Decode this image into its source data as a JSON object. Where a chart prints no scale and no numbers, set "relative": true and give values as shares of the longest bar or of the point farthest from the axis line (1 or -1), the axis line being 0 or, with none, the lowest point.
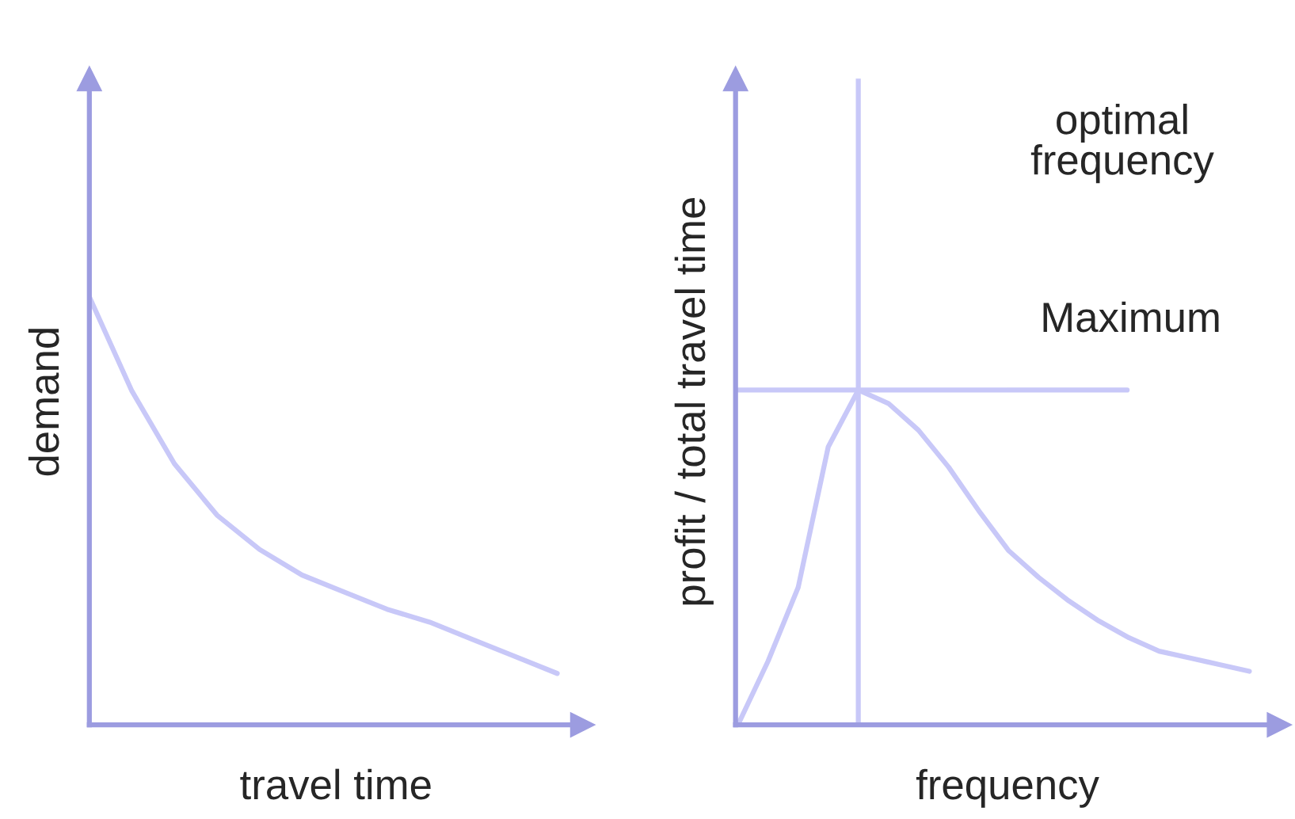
{
  "chart_data": [
    {
      "type": "line",
      "relative": true,
      "xlabel": "travel time",
      "ylabel": "demand",
      "categories": [
        null,
        null,
        null,
        null,
        null,
        null,
        null,
        null,
        null,
        null,
        null,
        null
      ],
      "tick_labels": false,
      "series": [
        {
          "color": "#c8c8f8",
          "values": [
            1,
            0.78,
            0.61,
            0.49,
            0.41,
            0.35,
            0.31,
            0.27,
            0.24,
            0.2,
            0.16,
            0.12
          ]
        }
      ]
    },
    {
      "type": "line",
      "relative": true,
      "xlabel": "frequency",
      "ylabel": "profit / total travel time",
      "categories": [
        null,
        null,
        null,
        null,
        null,
        null,
        null,
        null,
        null,
        null,
        null,
        null,
        null,
        null,
        null,
        null,
        null,
        null
      ],
      "tick_labels": false,
      "series": [
        {
          "color": "#c8c8f8",
          "values": [
            0,
            0.19,
            0.41,
            0.83,
            1,
            0.96,
            0.88,
            0.77,
            0.64,
            0.52,
            0.44,
            0.37,
            0.31,
            0.26,
            0.22,
            0.2,
            0.18,
            0.16
          ]
        }
      ],
      "annotations": [
        "optimal\nfrequency"
      ],
      "ref_lines": [
        {
          "axis": "y",
          "value": 1,
          "label": "Maximum",
          "color": "#c8c8f8"
        }
      ]
    }
  ]
}
